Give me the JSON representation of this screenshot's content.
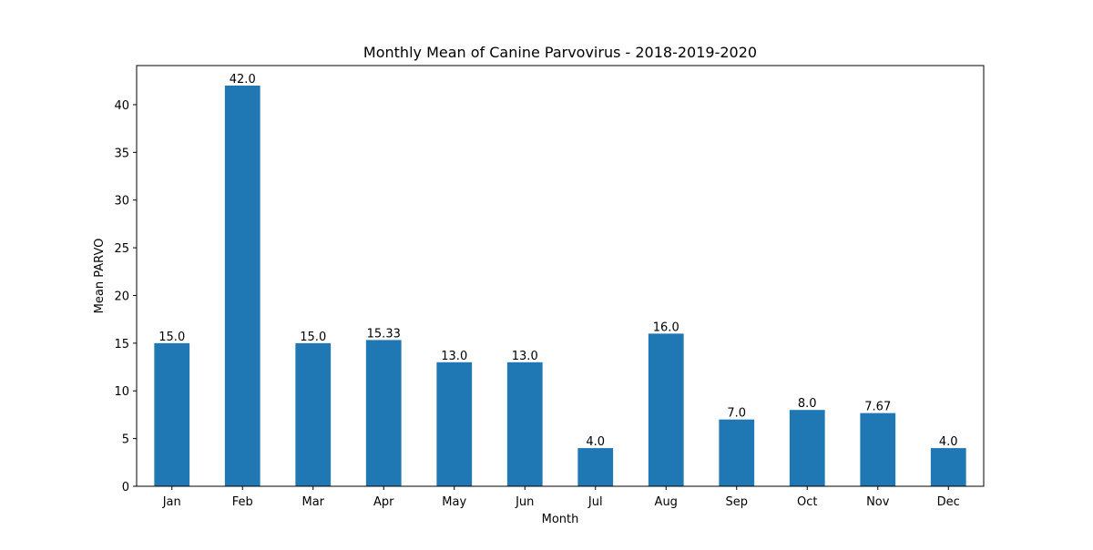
{
  "chart_data": {
    "type": "bar",
    "title": "Monthly Mean of Canine Parvovirus - 2018-2019-2020",
    "xlabel": "Month",
    "ylabel": "Mean PARVO",
    "categories": [
      "Jan",
      "Feb",
      "Mar",
      "Apr",
      "May",
      "Jun",
      "Jul",
      "Aug",
      "Sep",
      "Oct",
      "Nov",
      "Dec"
    ],
    "values": [
      15.0,
      42.0,
      15.0,
      15.33,
      13.0,
      13.0,
      4.0,
      16.0,
      7.0,
      8.0,
      7.67,
      4.0
    ],
    "data_labels": [
      "15.0",
      "42.0",
      "15.0",
      "15.33",
      "13.0",
      "13.0",
      "4.0",
      "16.0",
      "7.0",
      "8.0",
      "7.67",
      "4.0"
    ],
    "ylim": [
      0,
      44.1
    ],
    "yticks": [
      0,
      5,
      10,
      15,
      20,
      25,
      30,
      35,
      40
    ],
    "grid": false,
    "colors": {
      "bar": "#1f77b4",
      "axis": "#000000",
      "background": "#ffffff"
    }
  }
}
